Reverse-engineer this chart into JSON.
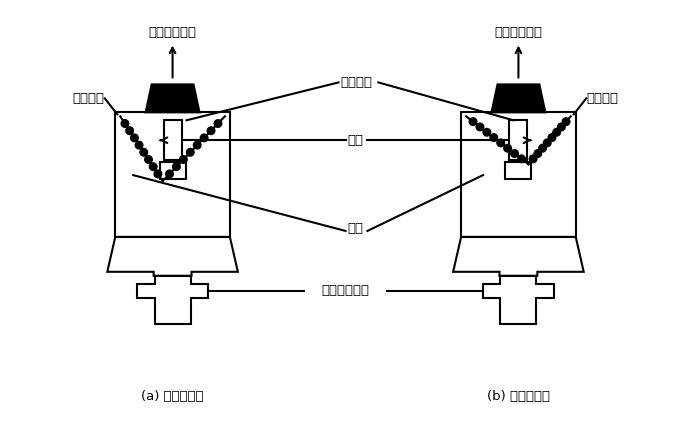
{
  "bg_color": "#ffffff",
  "line_color": "#000000",
  "fill_color": "#000000",
  "fig_width": 6.91,
  "fig_height": 4.22,
  "labels": {
    "left_top": "接机油压力表",
    "right_top": "接机油压力表",
    "left_resistor": "可变电阻",
    "right_resistor": "可变电阻",
    "sliding_arm": "滑动触臂",
    "spring": "弹簧",
    "diaphragm": "膜片",
    "oil_port": "润滑油道接口",
    "caption_left": "(a) 油压下降时",
    "caption_right": "(b) 油压升高时"
  },
  "font": "SimHei"
}
